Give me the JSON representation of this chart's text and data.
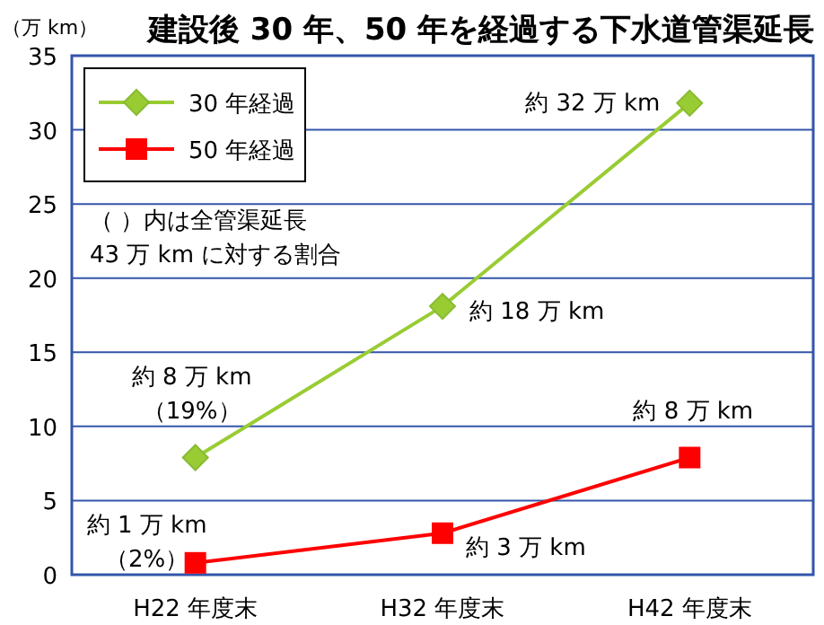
{
  "chart_data": {
    "type": "line",
    "title": "建設後 30 年、50 年を経過する下水道管渠延長",
    "ylabel": "（万 km）",
    "categories": [
      "H22 年度末",
      "H32 年度末",
      "H42 年度末"
    ],
    "series": [
      {
        "name": "30 年経過",
        "color": "#99cc33",
        "marker": "diamond",
        "values": [
          7.9,
          18.1,
          31.8
        ]
      },
      {
        "name": "50 年経過",
        "color": "#ff0000",
        "marker": "square",
        "values": [
          0.8,
          2.8,
          7.9
        ]
      }
    ],
    "ylim": [
      0,
      35
    ],
    "yticks": [
      0,
      5,
      10,
      15,
      20,
      25,
      30,
      35
    ],
    "grid": "y",
    "legend": "top left",
    "annotations": [
      {
        "text": "約 32 万 km",
        "x": "H42 年度末",
        "y": 31.8
      },
      {
        "text": "約 18 万 km",
        "x": "H32 年度末",
        "y": 18.1
      },
      {
        "text": "約 8 万 km\n（19%）",
        "x": "H22 年度末",
        "y": 7.9
      },
      {
        "text": "約 8 万 km",
        "x": "H42 年度末",
        "y": 7.9
      },
      {
        "text": "約 1 万 km\n（2%）",
        "x": "H22 年度末",
        "y": 0.8
      },
      {
        "text": "約 3 万 km",
        "x": "H32 年度末",
        "y": 2.8
      },
      "（ ）内は全管渠延長\n43 万 km に対する割合"
    ]
  }
}
